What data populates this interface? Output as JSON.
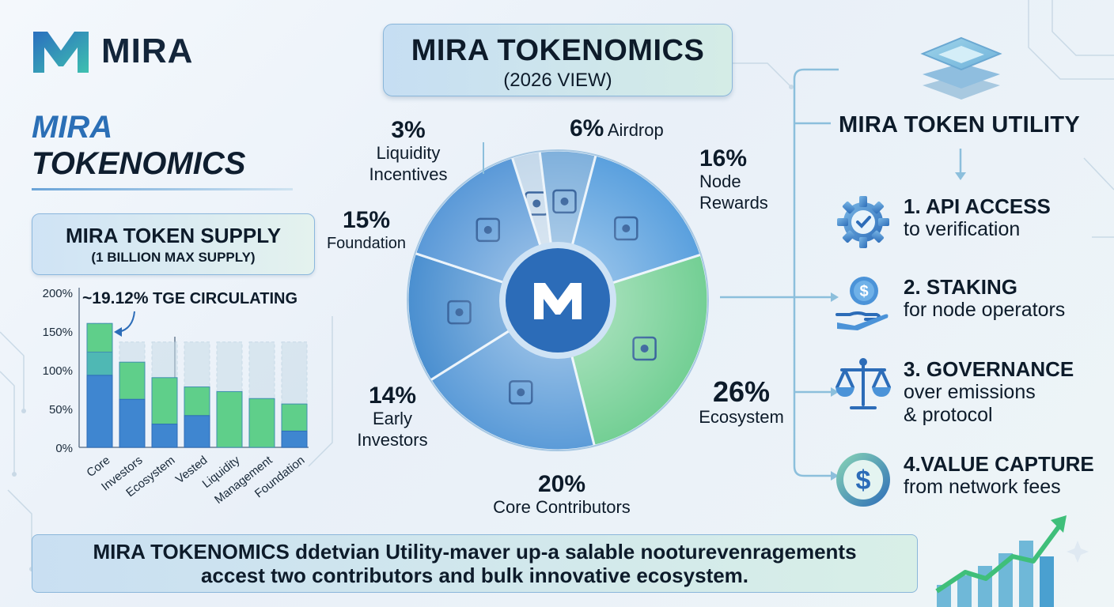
{
  "brand": {
    "logo_text": "MIRA"
  },
  "left_title": {
    "line1": "MIRA",
    "line2": "TOKENOMICS"
  },
  "supply_box": {
    "title": "MIRA TOKEN SUPPLY",
    "subtitle": "(1 BILLION MAX SUPPLY)"
  },
  "center_title": {
    "title": "MIRA TOKENOMICS",
    "subtitle": "(2026 VIEW)"
  },
  "tge_note": {
    "value": "~19.12%",
    "text": " TGE CIRCULATING"
  },
  "colors": {
    "blue": "#3f86d0",
    "green": "#5fcf8a",
    "navy": "#1e4f8f",
    "teal": "#4fb8b4",
    "ghost": "#c9dde8"
  },
  "chart_data": [
    {
      "type": "bar",
      "title": "",
      "categories": [
        "Core",
        "Investors",
        "Ecosystem",
        "Vested",
        "Liquidity",
        "Management",
        "Foundation"
      ],
      "ylim": [
        0,
        200
      ],
      "yticks": [
        "0%",
        "50%",
        "100%",
        "150%",
        "200%"
      ],
      "series": [
        {
          "values": [
            93,
            62,
            30,
            41,
            null,
            null,
            21
          ]
        },
        {
          "values": [
            123,
            null,
            null,
            null,
            null,
            null,
            null
          ]
        },
        {
          "values": [
            160,
            110,
            90,
            78,
            72,
            63,
            56
          ]
        }
      ],
      "background_max": [
        160,
        136,
        136,
        136,
        136,
        136,
        136
      ]
    },
    {
      "type": "pie",
      "slices": [
        {
          "label": "Liquidity Incentives",
          "pct_label": "3%",
          "value": 3
        },
        {
          "label": "Airdrop",
          "pct_label": "6%",
          "value": 6
        },
        {
          "label": "Node Rewards",
          "pct_label": "16%",
          "value": 16
        },
        {
          "label": "Ecosystem",
          "pct_label": "26%",
          "value": 26
        },
        {
          "label": "Core Contributors",
          "pct_label": "20%",
          "value": 20
        },
        {
          "label": "Early Investors",
          "pct_label": "14%",
          "value": 14
        },
        {
          "label": "Foundation",
          "pct_label": "15%",
          "value": 15
        }
      ]
    }
  ],
  "pie_labels": {
    "liq": {
      "pct": "3%",
      "l1": "Liquidity",
      "l2": "Incentives"
    },
    "air": {
      "pct": "6%",
      "name": "Airdrop"
    },
    "node": {
      "pct": "16%",
      "l1": "Node",
      "l2": "Rewards"
    },
    "found": {
      "pct": "15%",
      "name": "Foundation"
    },
    "eco": {
      "pct": "26%",
      "name": "Ecosystem"
    },
    "early": {
      "pct": "14%",
      "l1": "Early",
      "l2": "Investors"
    },
    "core": {
      "pct": "20%",
      "name": "Core Contributors"
    }
  },
  "utility": {
    "title": "MIRA TOKEN UTILITY",
    "items": [
      {
        "head": "1. API ACCESS",
        "sub1": "to verification",
        "sub2": "",
        "icon": "gear-check-icon"
      },
      {
        "head": "2. STAKING",
        "sub1": "for node operators",
        "sub2": "",
        "icon": "coin-hand-icon"
      },
      {
        "head": "3. GOVERNANCE",
        "sub1": "over emissions",
        "sub2": "& protocol",
        "icon": "scales-icon"
      },
      {
        "head": "4.VALUE CAPTURE",
        "sub1": "from network fees",
        "sub2": "",
        "icon": "dollar-coin-icon"
      }
    ]
  },
  "banner": {
    "line1": "MIRA TOKENOMICS ddetvian Utility-maver up-a salable nooturevenragements",
    "line2": "accest two contributors and bulk innovative ecosystem."
  }
}
